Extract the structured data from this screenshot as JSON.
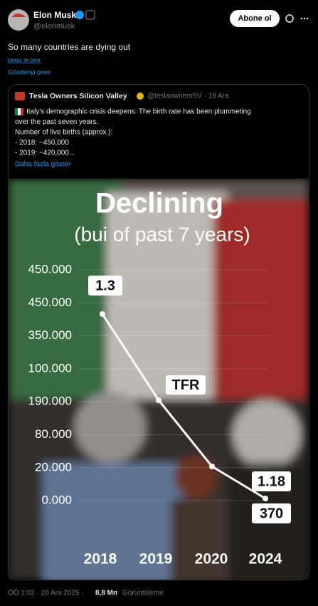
{
  "post": {
    "author": "Elon Musk",
    "handle": "@elonmusk",
    "follow_button": "Abone ol",
    "text": "So many countries are dying out",
    "deepl": "DeepL ile çevir",
    "translate": "Gönderiyi çevir",
    "quote": {
      "author": "Tesla Owners Silicon Valley",
      "handle_date": "@teslaownersSV · 19 Ara",
      "lines": [
        "Italy's demographic crisis deepens: The birth rate has been plummeting",
        "over the past seven years.",
        "Number of live births (approx.):",
        "-  2018: ~450,000",
        "-  2019: ~420,000..."
      ],
      "show_more": "Daha fazla göster",
      "image": {
        "title": "Declining",
        "subtitle": "(bui of past 7 years)",
        "y_labels": [
          "450.000",
          "450.000",
          "350.000",
          "100.000",
          "190.000",
          "80.000",
          "20.000",
          "0.000"
        ],
        "x_labels": [
          "2018",
          "2019",
          "2020",
          "2024"
        ],
        "point_labels": [
          "1.3",
          "TFR",
          "1.18",
          "370"
        ]
      }
    },
    "meta": "ÖÖ 1:02 · 20 Ara 2025 ·",
    "views_count": "8,8 Mn",
    "views_label": "Görüntüleme"
  }
}
